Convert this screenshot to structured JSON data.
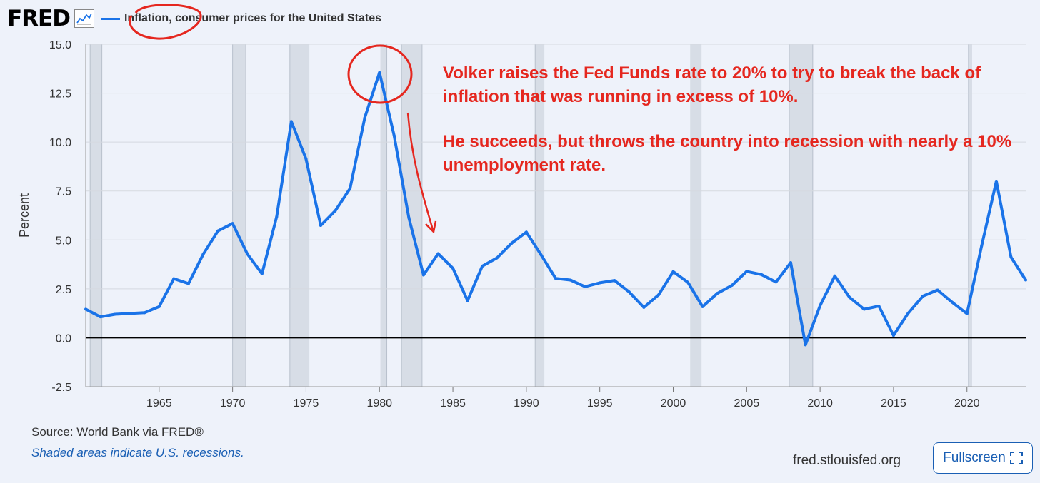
{
  "header": {
    "logo": "FRED",
    "series_label": "Inflation, consumer prices for the United States",
    "chart_icon": "line-chart-icon"
  },
  "footer": {
    "source": "Source: World Bank via FRED®",
    "shaded_note": "Shaded areas indicate U.S. recessions.",
    "site": "fred.stlouisfed.org",
    "fullscreen_label": "Fullscreen",
    "fullscreen_icon": "expand-icon"
  },
  "annotation": {
    "line1": "Volker raises the Fed Funds rate to 20% to try to break the back of inflation that was running in excess of 10%.",
    "line2": "He succeeds, but throws the country into recession with nearly a 10% unemployment rate."
  },
  "colors": {
    "series": "#1a73e8",
    "annotation": "#e5271f",
    "recession": "#d7dde6",
    "background": "#eef2fa"
  },
  "chart_data": {
    "type": "line",
    "title": "Inflation, consumer prices for the United States",
    "xlabel": "",
    "ylabel": "Percent",
    "xlim": [
      1960,
      2024
    ],
    "ylim": [
      -2.5,
      15.0
    ],
    "yticks": [
      "15.0",
      "12.5",
      "10.0",
      "7.5",
      "5.0",
      "2.5",
      "0.0",
      "-2.5"
    ],
    "ytick_values": [
      15,
      12.5,
      10,
      7.5,
      5,
      2.5,
      0,
      -2.5
    ],
    "xticks": [
      "1965",
      "1970",
      "1975",
      "1980",
      "1985",
      "1990",
      "1995",
      "2000",
      "2005",
      "2010",
      "2015",
      "2020"
    ],
    "xtick_values": [
      1965,
      1970,
      1975,
      1980,
      1985,
      1990,
      1995,
      2000,
      2005,
      2010,
      2015,
      2020
    ],
    "grid": true,
    "recessions": [
      [
        1960.3,
        1961.1
      ],
      [
        1970.0,
        1970.9
      ],
      [
        1973.9,
        1975.2
      ],
      [
        1980.1,
        1980.5
      ],
      [
        1981.5,
        1982.9
      ],
      [
        1990.6,
        1991.2
      ],
      [
        2001.2,
        2001.9
      ],
      [
        2007.9,
        2009.5
      ],
      [
        2020.1,
        2020.3
      ]
    ],
    "series": [
      {
        "x": [
          1960,
          1961,
          1962,
          1963,
          1964,
          1965,
          1966,
          1967,
          1968,
          1969,
          1970,
          1971,
          1972,
          1973,
          1974,
          1975,
          1976,
          1977,
          1978,
          1979,
          1980,
          1981,
          1982,
          1983,
          1984,
          1985,
          1986,
          1987,
          1988,
          1989,
          1990,
          1991,
          1992,
          1993,
          1994,
          1995,
          1996,
          1997,
          1998,
          1999,
          2000,
          2001,
          2002,
          2003,
          2004,
          2005,
          2006,
          2007,
          2008,
          2009,
          2010,
          2011,
          2012,
          2013,
          2014,
          2015,
          2016,
          2017,
          2018,
          2019,
          2020,
          2021,
          2022,
          2023,
          2024
        ],
        "values": [
          1.46,
          1.07,
          1.2,
          1.24,
          1.28,
          1.59,
          3.02,
          2.77,
          4.27,
          5.46,
          5.84,
          4.29,
          3.27,
          6.18,
          11.05,
          9.14,
          5.74,
          6.5,
          7.63,
          11.25,
          13.55,
          10.33,
          6.13,
          3.21,
          4.3,
          3.55,
          1.9,
          3.66,
          4.08,
          4.83,
          5.4,
          4.24,
          3.03,
          2.95,
          2.61,
          2.81,
          2.93,
          2.34,
          1.55,
          2.19,
          3.38,
          2.83,
          1.59,
          2.27,
          2.68,
          3.39,
          3.23,
          2.85,
          3.84,
          -0.36,
          1.64,
          3.16,
          2.07,
          1.46,
          1.62,
          0.12,
          1.26,
          2.13,
          2.44,
          1.81,
          1.23,
          4.7,
          8.0,
          4.12,
          2.95
        ]
      }
    ]
  }
}
